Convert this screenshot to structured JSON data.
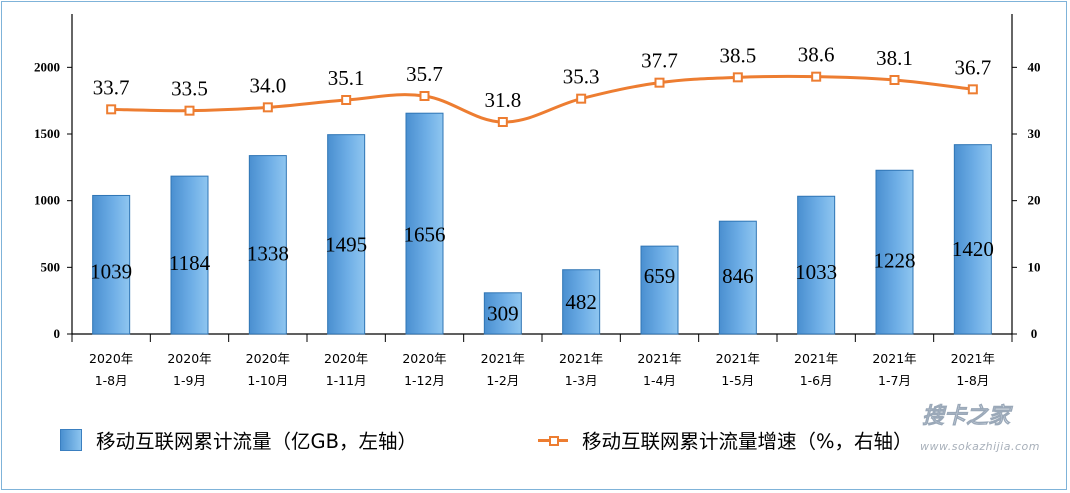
{
  "chart_data": {
    "type": "bar+line",
    "categories": [
      [
        "2020年",
        "1-8月"
      ],
      [
        "2020年",
        "1-9月"
      ],
      [
        "2020年",
        "1-10月"
      ],
      [
        "2020年",
        "1-11月"
      ],
      [
        "2020年",
        "1-12月"
      ],
      [
        "2021年",
        "1-2月"
      ],
      [
        "2021年",
        "1-3月"
      ],
      [
        "2021年",
        "1-4月"
      ],
      [
        "2021年",
        "1-5月"
      ],
      [
        "2021年",
        "1-6月"
      ],
      [
        "2021年",
        "1-7月"
      ],
      [
        "2021年",
        "1-8月"
      ]
    ],
    "series": [
      {
        "name": "移动互联网累计流量（亿GB，左轴）",
        "type": "bar",
        "axis": "left",
        "values": [
          1039,
          1184,
          1338,
          1495,
          1656,
          309,
          482,
          659,
          846,
          1033,
          1228,
          1420
        ],
        "labels": [
          "1039",
          "1184",
          "1338",
          "1495",
          "1656",
          "309",
          "482",
          "659",
          "846",
          "1033",
          "1228",
          "1420"
        ],
        "color": "#5b9bd5"
      },
      {
        "name": "移动互联网累计流量增速（%，右轴）",
        "type": "line",
        "axis": "right",
        "values": [
          33.7,
          33.5,
          34.0,
          35.1,
          35.7,
          31.8,
          35.3,
          37.7,
          38.5,
          38.6,
          38.1,
          36.7
        ],
        "labels": [
          "33.7",
          "33.5",
          "34.0",
          "35.1",
          "35.7",
          "31.8",
          "35.3",
          "37.7",
          "38.5",
          "38.6",
          "38.1",
          "36.7"
        ],
        "color": "#ed7d31"
      }
    ],
    "y_left": {
      "min": 0,
      "max": 2400,
      "ticks": [
        "0",
        "500",
        "1000",
        "1500",
        "2000"
      ]
    },
    "y_right": {
      "min": 0,
      "max": 48,
      "ticks": [
        "0",
        "10",
        "20",
        "30",
        "40"
      ]
    },
    "legend_position": "bottom",
    "grid": false
  },
  "watermark": {
    "logo": "搜卡之家",
    "url": "www.sokazhijia.com"
  }
}
